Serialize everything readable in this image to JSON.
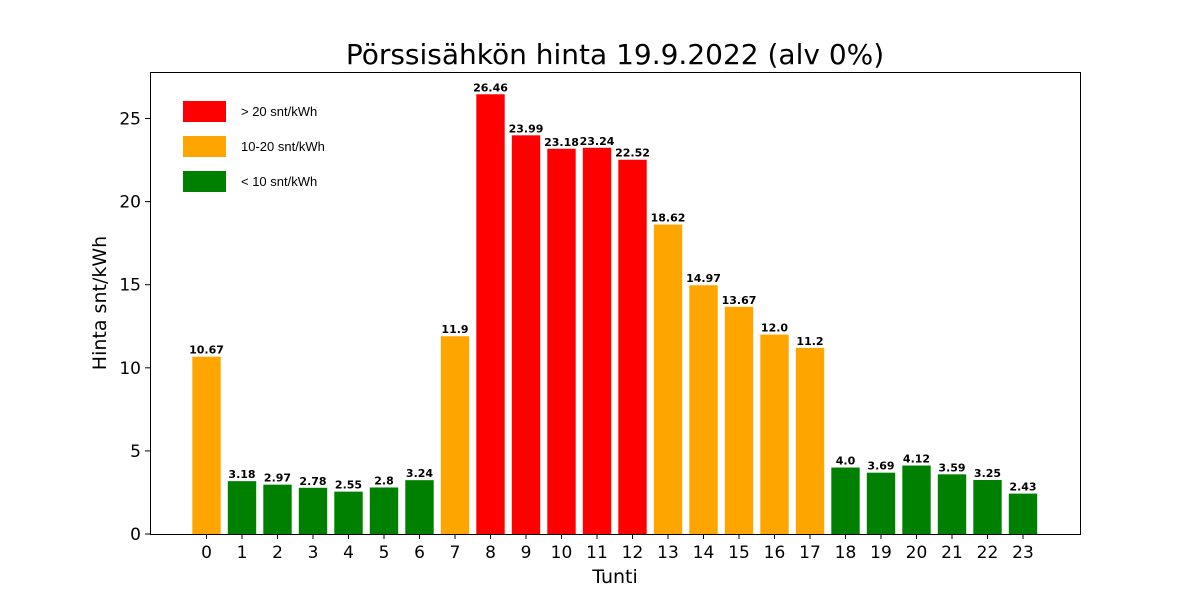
{
  "chart_data": {
    "type": "bar",
    "title": "Pörssisähkön hinta 19.9.2022 (alv 0%)",
    "xlabel": "Tunti",
    "ylabel": "Hinta snt/kWh",
    "categories": [
      "0",
      "1",
      "2",
      "3",
      "4",
      "5",
      "6",
      "7",
      "8",
      "9",
      "10",
      "11",
      "12",
      "13",
      "14",
      "15",
      "16",
      "17",
      "18",
      "19",
      "20",
      "21",
      "22",
      "23"
    ],
    "values": [
      10.67,
      3.18,
      2.97,
      2.78,
      2.55,
      2.8,
      3.24,
      11.9,
      26.46,
      23.99,
      23.18,
      23.24,
      22.52,
      18.62,
      14.97,
      13.67,
      12.0,
      11.2,
      4.0,
      3.69,
      4.12,
      3.59,
      3.25,
      2.43
    ],
    "data_labels": [
      "10.67",
      "3.18",
      "2.97",
      "2.78",
      "2.55",
      "2.8",
      "3.24",
      "11.9",
      "26.46",
      "23.99",
      "23.18",
      "23.24",
      "22.52",
      "18.62",
      "14.97",
      "13.67",
      "12.0",
      "11.2",
      "4.0",
      "3.69",
      "4.12",
      "3.59",
      "3.25",
      "2.43"
    ],
    "ylim": [
      0,
      27.8
    ],
    "yticks": [
      0,
      5,
      10,
      15,
      20,
      25
    ],
    "ytick_labels": [
      "0",
      "5",
      "10",
      "15",
      "20",
      "25"
    ],
    "grid": false,
    "legend_position": "top-left",
    "legend": [
      {
        "label": "> 20 snt/kWh",
        "color": "#ff0000"
      },
      {
        "label": "10-20 snt/kWh",
        "color": "#ffa500"
      },
      {
        "label": "< 10 snt/kWh",
        "color": "#008000"
      }
    ],
    "color_thresholds": {
      "high": 20,
      "mid": 10
    },
    "colors": {
      "high": "#ff0000",
      "mid": "#ffa500",
      "low": "#008000"
    }
  }
}
